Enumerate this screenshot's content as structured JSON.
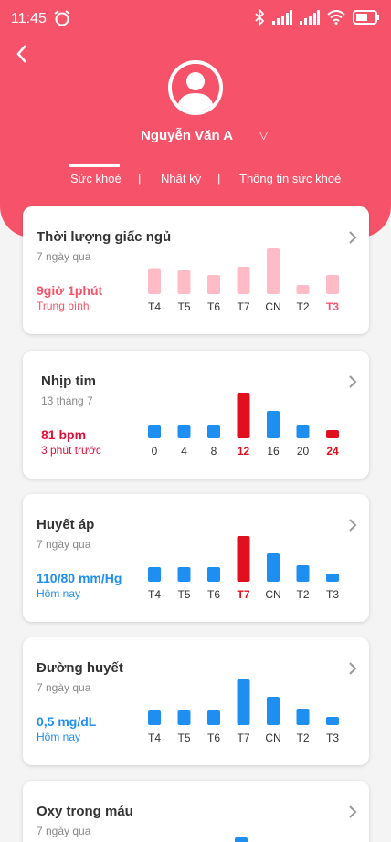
{
  "status_bar": {
    "time": "11:45"
  },
  "profile": {
    "name": "Nguyễn Văn A"
  },
  "tabs": [
    {
      "label": "Sức khoẻ"
    },
    {
      "label": "Nhật ký"
    },
    {
      "label": "Thông tin sức khoẻ"
    }
  ],
  "cards": [
    {
      "title": "Thời lượng giấc ngủ",
      "subtitle": "7 ngày qua",
      "value": "9giờ 1phút",
      "value_sub": "Trung bình",
      "value_color": "#f6536a",
      "chart_data": {
        "type": "bar",
        "categories": [
          "T4",
          "T5",
          "T6",
          "T7",
          "CN",
          "T2",
          "T3"
        ],
        "values": [
          0.55,
          0.52,
          0.42,
          0.6,
          1.0,
          0.2,
          0.42
        ],
        "colors": [
          "#ffbcc7",
          "#ffbcc7",
          "#ffbcc7",
          "#ffbcc7",
          "#ffbcc7",
          "#ffbcc7",
          "#ffbcc7"
        ],
        "highlight_category": "T3"
      }
    },
    {
      "title": "Nhịp tim",
      "subtitle": "13 tháng 7",
      "value": "81 bpm",
      "value_sub": "3 phút trước",
      "value_color": "#e0103a",
      "chart_data": {
        "type": "bar",
        "categories": [
          "0",
          "4",
          "8",
          "12",
          "16",
          "20",
          "24"
        ],
        "values": [
          0.3,
          0.3,
          0.3,
          1.0,
          0.6,
          0.3,
          0.18
        ],
        "colors": [
          "#1e8ff0",
          "#1e8ff0",
          "#1e8ff0",
          "#e0101f",
          "#1e8ff0",
          "#1e8ff0",
          "#e0101f"
        ],
        "highlight_categories": [
          "12",
          "24"
        ]
      }
    },
    {
      "title": "Huyết áp",
      "subtitle": "7 ngày qua",
      "value": "110/80 mm/Hg",
      "value_sub": "Hôm nay",
      "value_color": "#1e8ff0",
      "chart_data": {
        "type": "bar",
        "categories": [
          "T4",
          "T5",
          "T6",
          "T7",
          "CN",
          "T2",
          "T3"
        ],
        "values": [
          0.32,
          0.32,
          0.32,
          1.0,
          0.62,
          0.36,
          0.18
        ],
        "colors": [
          "#1e8ff0",
          "#1e8ff0",
          "#1e8ff0",
          "#e0101f",
          "#1e8ff0",
          "#1e8ff0",
          "#1e8ff0"
        ],
        "highlight_category": "T7"
      }
    },
    {
      "title": "Đường huyết",
      "subtitle": "7 ngày qua",
      "value": "0,5 mg/dL",
      "value_sub": "Hôm nay",
      "value_color": "#1e8ff0",
      "chart_data": {
        "type": "bar",
        "categories": [
          "T4",
          "T5",
          "T6",
          "T7",
          "CN",
          "T2",
          "T3"
        ],
        "values": [
          0.32,
          0.32,
          0.32,
          1.0,
          0.62,
          0.36,
          0.18
        ],
        "colors": [
          "#1e8ff0",
          "#1e8ff0",
          "#1e8ff0",
          "#1e8ff0",
          "#1e8ff0",
          "#1e8ff0",
          "#1e8ff0"
        ]
      }
    },
    {
      "title": "Oxy trong máu",
      "subtitle": "7 ngày qua"
    }
  ]
}
